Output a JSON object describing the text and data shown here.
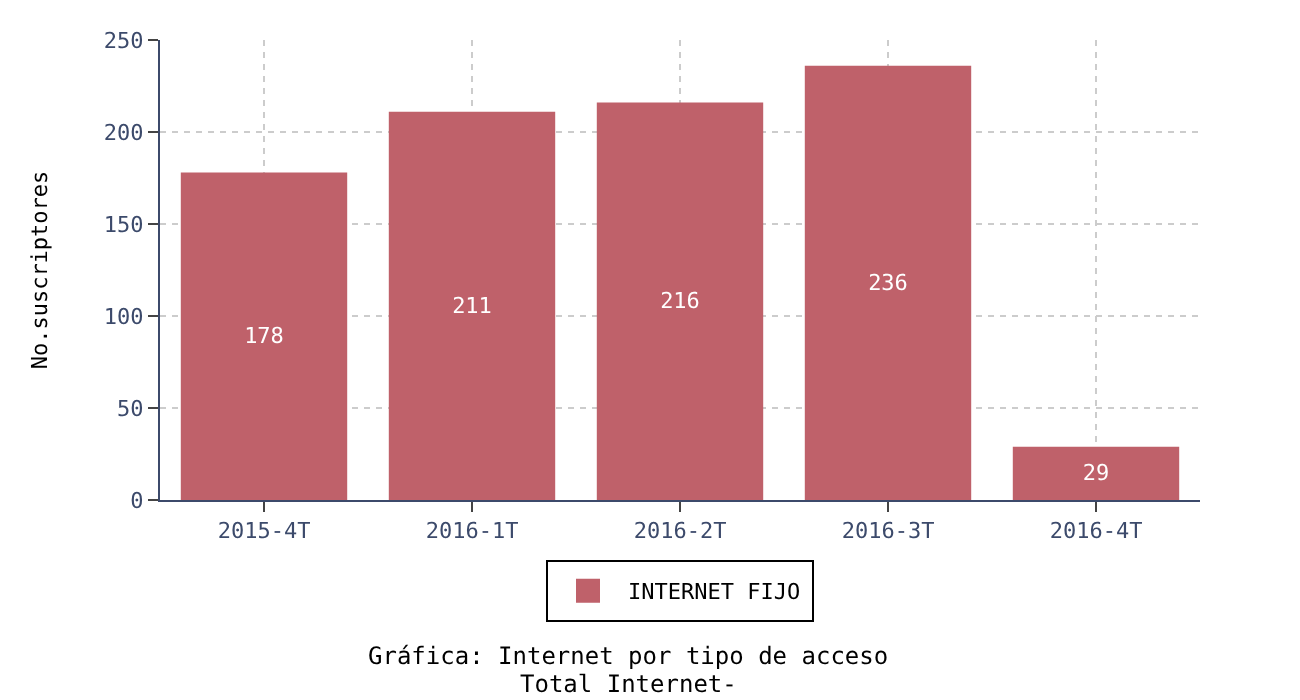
{
  "chart_data": {
    "type": "bar",
    "title": "Gráfica: Internet por tipo de acceso",
    "subtitle": "Total Internet-",
    "ylabel": "No.suscriptores",
    "categories": [
      "2015-4T",
      "2016-1T",
      "2016-2T",
      "2016-3T",
      "2016-4T"
    ],
    "series": [
      {
        "name": "INTERNET FIJO",
        "color": "#bf616a",
        "values": [
          178,
          211,
          216,
          236,
          29
        ]
      }
    ],
    "ylim": [
      0,
      250
    ],
    "yticks": [
      0,
      50,
      100,
      150,
      200,
      250
    ],
    "grid": true,
    "line_style": "dotted",
    "legend": "bottom",
    "data_labels": true
  }
}
